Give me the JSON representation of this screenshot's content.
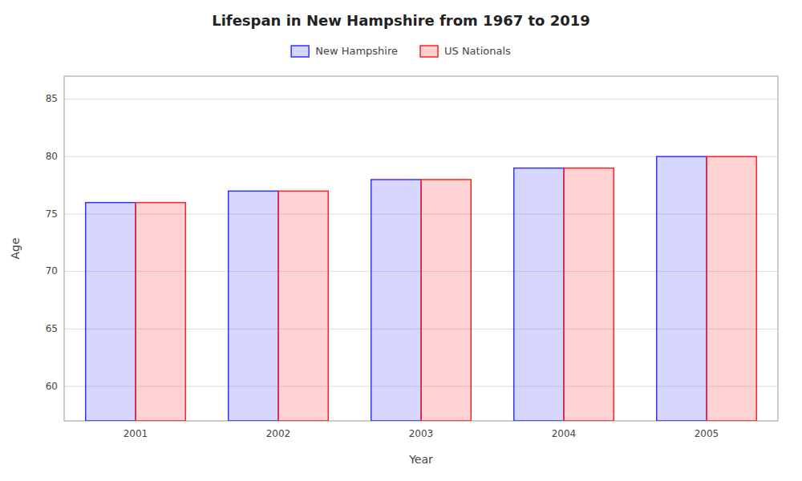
{
  "chart_data": {
    "type": "bar",
    "title": "Lifespan in New Hampshire from 1967 to 2019",
    "x_label": "Year",
    "y_label": "Age",
    "categories": [
      "2001",
      "2002",
      "2003",
      "2004",
      "2005"
    ],
    "series": [
      {
        "name": "New Hampshire",
        "color": "#3333ff",
        "values": [
          76,
          77,
          78,
          79,
          80
        ]
      },
      {
        "name": "US Nationals",
        "color": "#ff2222",
        "values": [
          76,
          77,
          78,
          79,
          80
        ]
      }
    ],
    "ylim": [
      57,
      87
    ],
    "yticks": [
      60,
      65,
      70,
      75,
      80,
      85
    ],
    "grid": true,
    "legend": "top"
  }
}
